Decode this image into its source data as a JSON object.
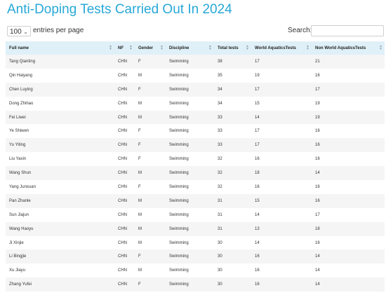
{
  "page": {
    "title": "Anti-Doping Tests Carried Out In 2024"
  },
  "controls": {
    "length_value": "100",
    "length_label": "entries per page",
    "search_label": "Search:",
    "search_value": ""
  },
  "table": {
    "columns": [
      "Full name",
      "NF",
      "Gender",
      "Discipline",
      "Total tests",
      "World AquaticsTests",
      "Non World AquaticsTests"
    ],
    "rows": [
      [
        "Tang Qianting",
        "CHN",
        "F",
        "Swimming",
        "38",
        "17",
        "21"
      ],
      [
        "Qin Haiyang",
        "CHN",
        "M",
        "Swimming",
        "35",
        "19",
        "16"
      ],
      [
        "Chen Luying",
        "CHN",
        "F",
        "Swimming",
        "34",
        "17",
        "17"
      ],
      [
        "Dong Zhihao",
        "CHN",
        "M",
        "Swimming",
        "34",
        "15",
        "19"
      ],
      [
        "Fei Liwei",
        "CHN",
        "M",
        "Swimming",
        "33",
        "14",
        "19"
      ],
      [
        "Ye Shiwen",
        "CHN",
        "F",
        "Swimming",
        "33",
        "17",
        "16"
      ],
      [
        "Yu Yiting",
        "CHN",
        "F",
        "Swimming",
        "33",
        "17",
        "16"
      ],
      [
        "Liu Yaxin",
        "CHN",
        "F",
        "Swimming",
        "32",
        "16",
        "16"
      ],
      [
        "Wang Shun",
        "CHN",
        "M",
        "Swimming",
        "32",
        "18",
        "14"
      ],
      [
        "Yang Junxuan",
        "CHN",
        "F",
        "Swimming",
        "32",
        "16",
        "16"
      ],
      [
        "Pan Zhanle",
        "CHN",
        "M",
        "Swimming",
        "31",
        "15",
        "16"
      ],
      [
        "Sun Jiajun",
        "CHN",
        "M",
        "Swimming",
        "31",
        "14",
        "17"
      ],
      [
        "Wang Haoyu",
        "CHN",
        "M",
        "Swimming",
        "31",
        "13",
        "18"
      ],
      [
        "Ji Xinjie",
        "CHN",
        "M",
        "Swimming",
        "30",
        "14",
        "16"
      ],
      [
        "Li Bingjie",
        "CHN",
        "F",
        "Swimming",
        "30",
        "16",
        "14"
      ],
      [
        "Xu Jiayu",
        "CHN",
        "M",
        "Swimming",
        "30",
        "16",
        "14"
      ],
      [
        "Zhang Yufei",
        "CHN",
        "F",
        "Swimming",
        "30",
        "16",
        "14"
      ]
    ]
  },
  "colors": {
    "title": "#28a8d8",
    "header_bg": "#dff0f8",
    "stripe": "#f5f5f5"
  }
}
